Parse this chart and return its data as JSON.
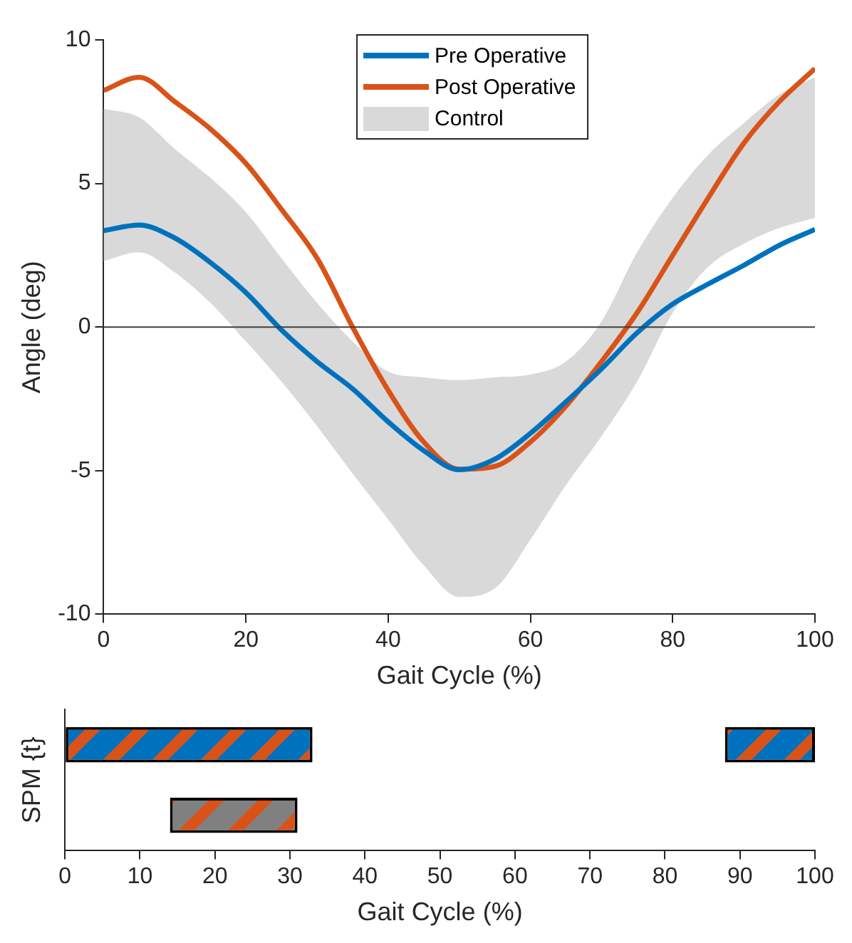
{
  "chart_data": [
    {
      "type": "line",
      "xlabel": "Gait Cycle (%)",
      "ylabel": "Angle (deg)",
      "x": [
        0,
        5,
        10,
        15,
        20,
        25,
        30,
        35,
        40,
        45,
        50,
        55,
        60,
        65,
        70,
        75,
        80,
        85,
        90,
        95,
        100
      ],
      "series": [
        {
          "name": "Pre Operative",
          "color": "#0072bd",
          "values": [
            3.36,
            3.55,
            3.1,
            2.25,
            1.2,
            -0.1,
            -1.2,
            -2.15,
            -3.3,
            -4.3,
            -4.97,
            -4.6,
            -3.7,
            -2.6,
            -1.45,
            -0.2,
            0.8,
            1.5,
            2.15,
            2.85,
            3.4
          ]
        },
        {
          "name": "Post Operative",
          "color": "#d95319",
          "values": [
            8.24,
            8.7,
            7.85,
            6.9,
            5.7,
            4.1,
            2.4,
            0,
            -2.2,
            -4.0,
            -4.95,
            -4.85,
            -4.0,
            -2.75,
            -1.2,
            0.5,
            2.5,
            4.5,
            6.4,
            7.85,
            9.0
          ]
        },
        {
          "name": "Control",
          "type": "area",
          "color": "#d9d9d9",
          "values": [
            null,
            null,
            null,
            null,
            null,
            null,
            null,
            null,
            null,
            null,
            null,
            null,
            null,
            null,
            null,
            null,
            null,
            null,
            null,
            null,
            null
          ],
          "lower": [
            2.3,
            2.6,
            1.9,
            0.85,
            -0.5,
            -1.9,
            -3.45,
            -5.1,
            -6.7,
            -8.3,
            -9.4,
            -9.1,
            -7.4,
            -5.5,
            -3.8,
            -1.9,
            0.5,
            2.1,
            2.9,
            3.45,
            3.8
          ],
          "upper": [
            7.6,
            7.3,
            6.2,
            5.2,
            4.0,
            2.4,
            0.85,
            -0.5,
            -1.55,
            -1.75,
            -1.85,
            -1.75,
            -1.65,
            -1.2,
            0.2,
            2.6,
            4.5,
            6.0,
            7.1,
            8.1,
            8.7
          ]
        }
      ],
      "xlim": [
        0,
        100
      ],
      "xticks": [
        0,
        20,
        40,
        60,
        80,
        100
      ],
      "ylim": [
        -10,
        10
      ],
      "yticks": [
        -10,
        -5,
        0,
        5,
        10
      ],
      "ref_lines": [
        {
          "axis": "y",
          "value": 0,
          "color": "#404040"
        }
      ],
      "legend": "top",
      "marker": "none",
      "line_style": "solid"
    },
    {
      "type": "bar",
      "orientation": "horizontal",
      "xlabel": "Gait Cycle (%)",
      "ylabel": "SPM {t}",
      "categories": [
        null,
        null
      ],
      "series": [
        {
          "color": "#0072bd",
          "values": [
            33,
            null
          ],
          "base": [
            0,
            null
          ]
        },
        {
          "color": "#0072bd",
          "values": [
            12,
            null
          ],
          "base": [
            88,
            null
          ]
        },
        {
          "color": "#808080",
          "values": [
            null,
            17
          ],
          "base": [
            null,
            14
          ]
        }
      ],
      "xlim": [
        0,
        100
      ],
      "xticks": [
        0,
        10,
        20,
        30,
        40,
        50,
        60,
        70,
        80,
        90,
        100
      ],
      "tick_labels": "x"
    }
  ]
}
